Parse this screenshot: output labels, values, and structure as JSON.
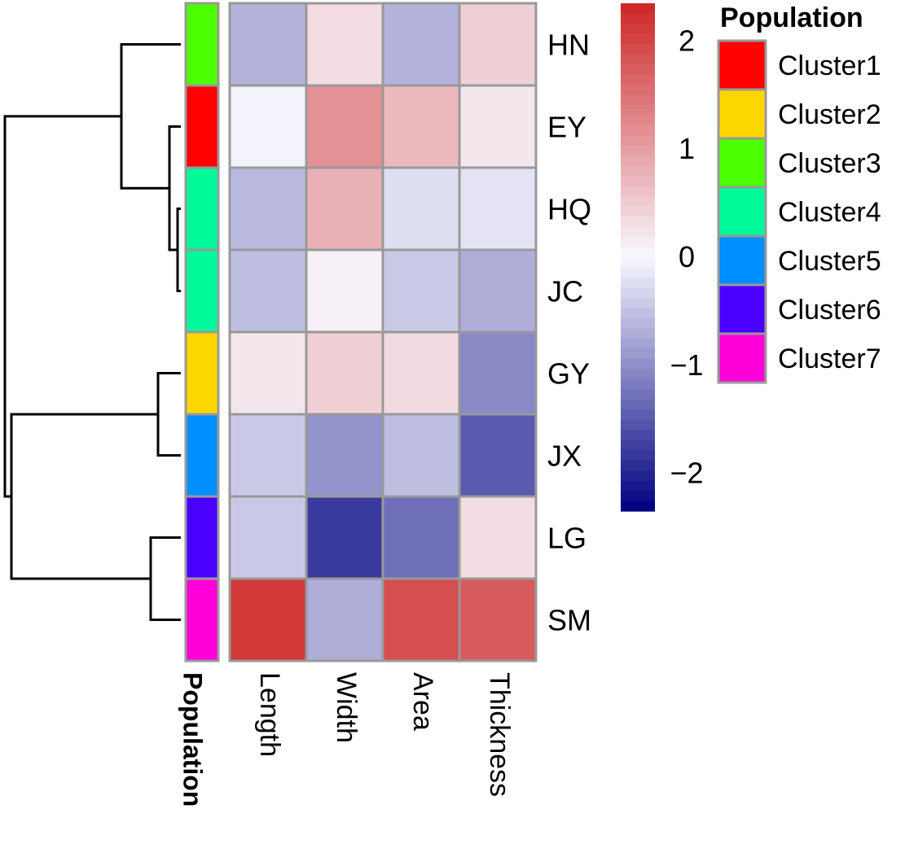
{
  "chart_data": {
    "type": "heatmap",
    "rows": [
      "HN",
      "EY",
      "HQ",
      "JC",
      "GY",
      "JX",
      "LG",
      "SM"
    ],
    "columns": [
      "Length",
      "Width",
      "Area",
      "Thickness"
    ],
    "values": [
      [
        -0.65,
        0.3,
        -0.65,
        0.45
      ],
      [
        -0.05,
        1.15,
        0.7,
        0.2
      ],
      [
        -0.6,
        0.8,
        -0.25,
        -0.2
      ],
      [
        -0.55,
        0.1,
        -0.45,
        -0.7
      ],
      [
        0.2,
        0.45,
        0.35,
        -1.05
      ],
      [
        -0.45,
        -0.95,
        -0.55,
        -1.5
      ],
      [
        -0.45,
        -1.8,
        -1.3,
        0.3
      ],
      [
        2.15,
        -0.7,
        1.9,
        1.75
      ]
    ],
    "population_annotation": {
      "label": "Population",
      "row_clusters": [
        "Cluster3",
        "Cluster1",
        "Cluster4",
        "Cluster4",
        "Cluster2",
        "Cluster5",
        "Cluster6",
        "Cluster7"
      ]
    },
    "legend": {
      "title": "Population",
      "items": [
        {
          "label": "Cluster1",
          "color": "#FF0000"
        },
        {
          "label": "Cluster2",
          "color": "#FFD700"
        },
        {
          "label": "Cluster3",
          "color": "#4CFF00"
        },
        {
          "label": "Cluster4",
          "color": "#00FA9A"
        },
        {
          "label": "Cluster5",
          "color": "#008FFF"
        },
        {
          "label": "Cluster6",
          "color": "#4A00FF"
        },
        {
          "label": "Cluster7",
          "color": "#FF00DB"
        }
      ]
    },
    "color_scale": {
      "min": -2.35,
      "max": 2.35,
      "low_color": "#000080",
      "mid_color": "#F8F8FF",
      "high_color": "#CD2626",
      "ticks": [
        2,
        1,
        0,
        -1,
        -2
      ],
      "tick_labels": [
        "2",
        "1",
        "0",
        "−1",
        "−2"
      ]
    },
    "dendrogram": {
      "merges": [
        [
          "HQ",
          "JC"
        ],
        [
          "EY",
          "HQ+JC"
        ],
        [
          "HN",
          "EY+HQ+JC"
        ],
        [
          "GY",
          "JX"
        ],
        [
          "LG",
          "SM"
        ],
        [
          "GY+JX",
          "LG+SM"
        ],
        [
          "HN+EY+HQ+JC",
          "GY+JX+LG+SM"
        ]
      ]
    }
  }
}
